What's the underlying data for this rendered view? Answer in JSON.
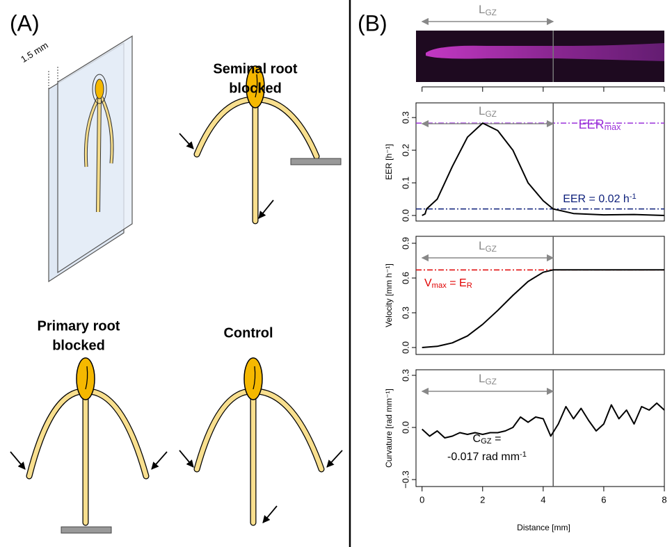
{
  "panel_a": {
    "label": "(A)",
    "plate_thickness": "1.5 mm",
    "seminal_title": [
      "Seminal root",
      "blocked"
    ],
    "primary_title": [
      "Primary root",
      "blocked"
    ],
    "control_title": [
      "Control"
    ]
  },
  "panel_b": {
    "label": "(B)",
    "lgz": [
      {
        "text": "L"
      },
      {
        "text": "GZ",
        "sub": true
      }
    ]
  },
  "chart_data": [
    {
      "type": "line",
      "ylabel": "EER [h⁻¹]",
      "xlim": [
        -0.2,
        8
      ],
      "xticks": [
        0,
        2,
        4,
        6,
        8
      ],
      "ylim": [
        -0.017,
        0.345
      ],
      "yticks": [
        {
          "value": 0,
          "label": "0.0"
        },
        0.1,
        0.2,
        0.3
      ],
      "x": [
        0,
        0.1,
        0.15,
        0.5,
        1,
        1.5,
        2,
        2.5,
        3,
        3.5,
        4,
        4.33,
        5,
        6,
        7,
        8
      ],
      "values": [
        0,
        0.005,
        0.02,
        0.05,
        0.15,
        0.24,
        0.283,
        0.26,
        0.2,
        0.1,
        0.045,
        0.02,
        0.006,
        0.002,
        0.003,
        0
      ],
      "color": "#000000",
      "vline": 4.33,
      "lgz": [
        {
          "text": "L"
        },
        {
          "text": "GZ",
          "sub": true
        }
      ],
      "hlines": [
        {
          "value": 0.283,
          "color": "#9b30d9",
          "label": [
            {
              "text": "EER"
            },
            {
              "text": "max",
              "sub": true
            }
          ]
        },
        {
          "value": 0.02,
          "color": "#0b1e7a",
          "label": [
            {
              "text": "EER = 0.02 h"
            },
            {
              "text": "-1",
              "sup": true
            }
          ]
        }
      ]
    },
    {
      "type": "line",
      "ylabel": "Velocity [mm h⁻¹]",
      "xlim": [
        -0.2,
        8
      ],
      "xticks": [
        0,
        2,
        4,
        6,
        8
      ],
      "ylim": [
        -0.06,
        0.96
      ],
      "yticks": [
        {
          "value": 0,
          "label": "0.0"
        },
        0.3,
        0.6,
        0.9
      ],
      "x": [
        0,
        0.5,
        1,
        1.5,
        2,
        2.5,
        3,
        3.5,
        4,
        4.33,
        5,
        6,
        7,
        8
      ],
      "values": [
        0,
        0.01,
        0.04,
        0.1,
        0.2,
        0.32,
        0.45,
        0.57,
        0.65,
        0.67,
        0.67,
        0.67,
        0.67,
        0.67
      ],
      "color": "#000000",
      "vline": 4.33,
      "lgz": [
        {
          "text": "L"
        },
        {
          "text": "GZ",
          "sub": true
        }
      ],
      "hlines": [
        {
          "value": 0.67,
          "color": "#e00000",
          "label": [
            {
              "text": "V"
            },
            {
              "text": "max",
              "sub": true
            },
            {
              "text": " = E"
            },
            {
              "text": "R",
              "sub": true
            }
          ]
        }
      ]
    },
    {
      "type": "line",
      "ylabel": "Curvature [rad mm⁻¹]",
      "xlabel": "Distance [mm]",
      "xlim": [
        -0.2,
        8
      ],
      "xticks": [
        0,
        2,
        4,
        6,
        8
      ],
      "ylim": [
        -0.34,
        0.332
      ],
      "yticks": [
        {
          "value": -0.3,
          "label": "−0.3"
        },
        {
          "value": 0,
          "label": "0.0"
        },
        0.3
      ],
      "x": [
        0,
        0.25,
        0.5,
        0.75,
        1,
        1.25,
        1.5,
        1.75,
        2,
        2.25,
        2.5,
        2.75,
        3,
        3.25,
        3.5,
        3.75,
        4,
        4.25,
        4.5,
        4.75,
        5,
        5.25,
        5.5,
        5.75,
        6,
        6.25,
        6.5,
        6.75,
        7,
        7.25,
        7.5,
        7.75,
        8
      ],
      "values": [
        -0.01,
        -0.05,
        -0.02,
        -0.06,
        -0.05,
        -0.03,
        -0.04,
        -0.03,
        -0.04,
        -0.03,
        -0.03,
        -0.02,
        0.0,
        0.06,
        0.03,
        0.06,
        0.05,
        -0.05,
        0.02,
        0.12,
        0.05,
        0.11,
        0.04,
        -0.02,
        0.02,
        0.13,
        0.05,
        0.1,
        0.02,
        0.12,
        0.1,
        0.14,
        0.1
      ],
      "color": "#000000",
      "vline": 4.33,
      "lgz": [
        {
          "text": "L"
        },
        {
          "text": "GZ",
          "sub": true
        }
      ],
      "annotation": [
        [
          {
            "text": "C"
          },
          {
            "text": "GZ",
            "sub": true
          },
          {
            "text": " ="
          }
        ],
        [
          {
            "text": "-0.017 rad mm"
          },
          {
            "text": "-1",
            "sup": true
          }
        ]
      ]
    }
  ]
}
